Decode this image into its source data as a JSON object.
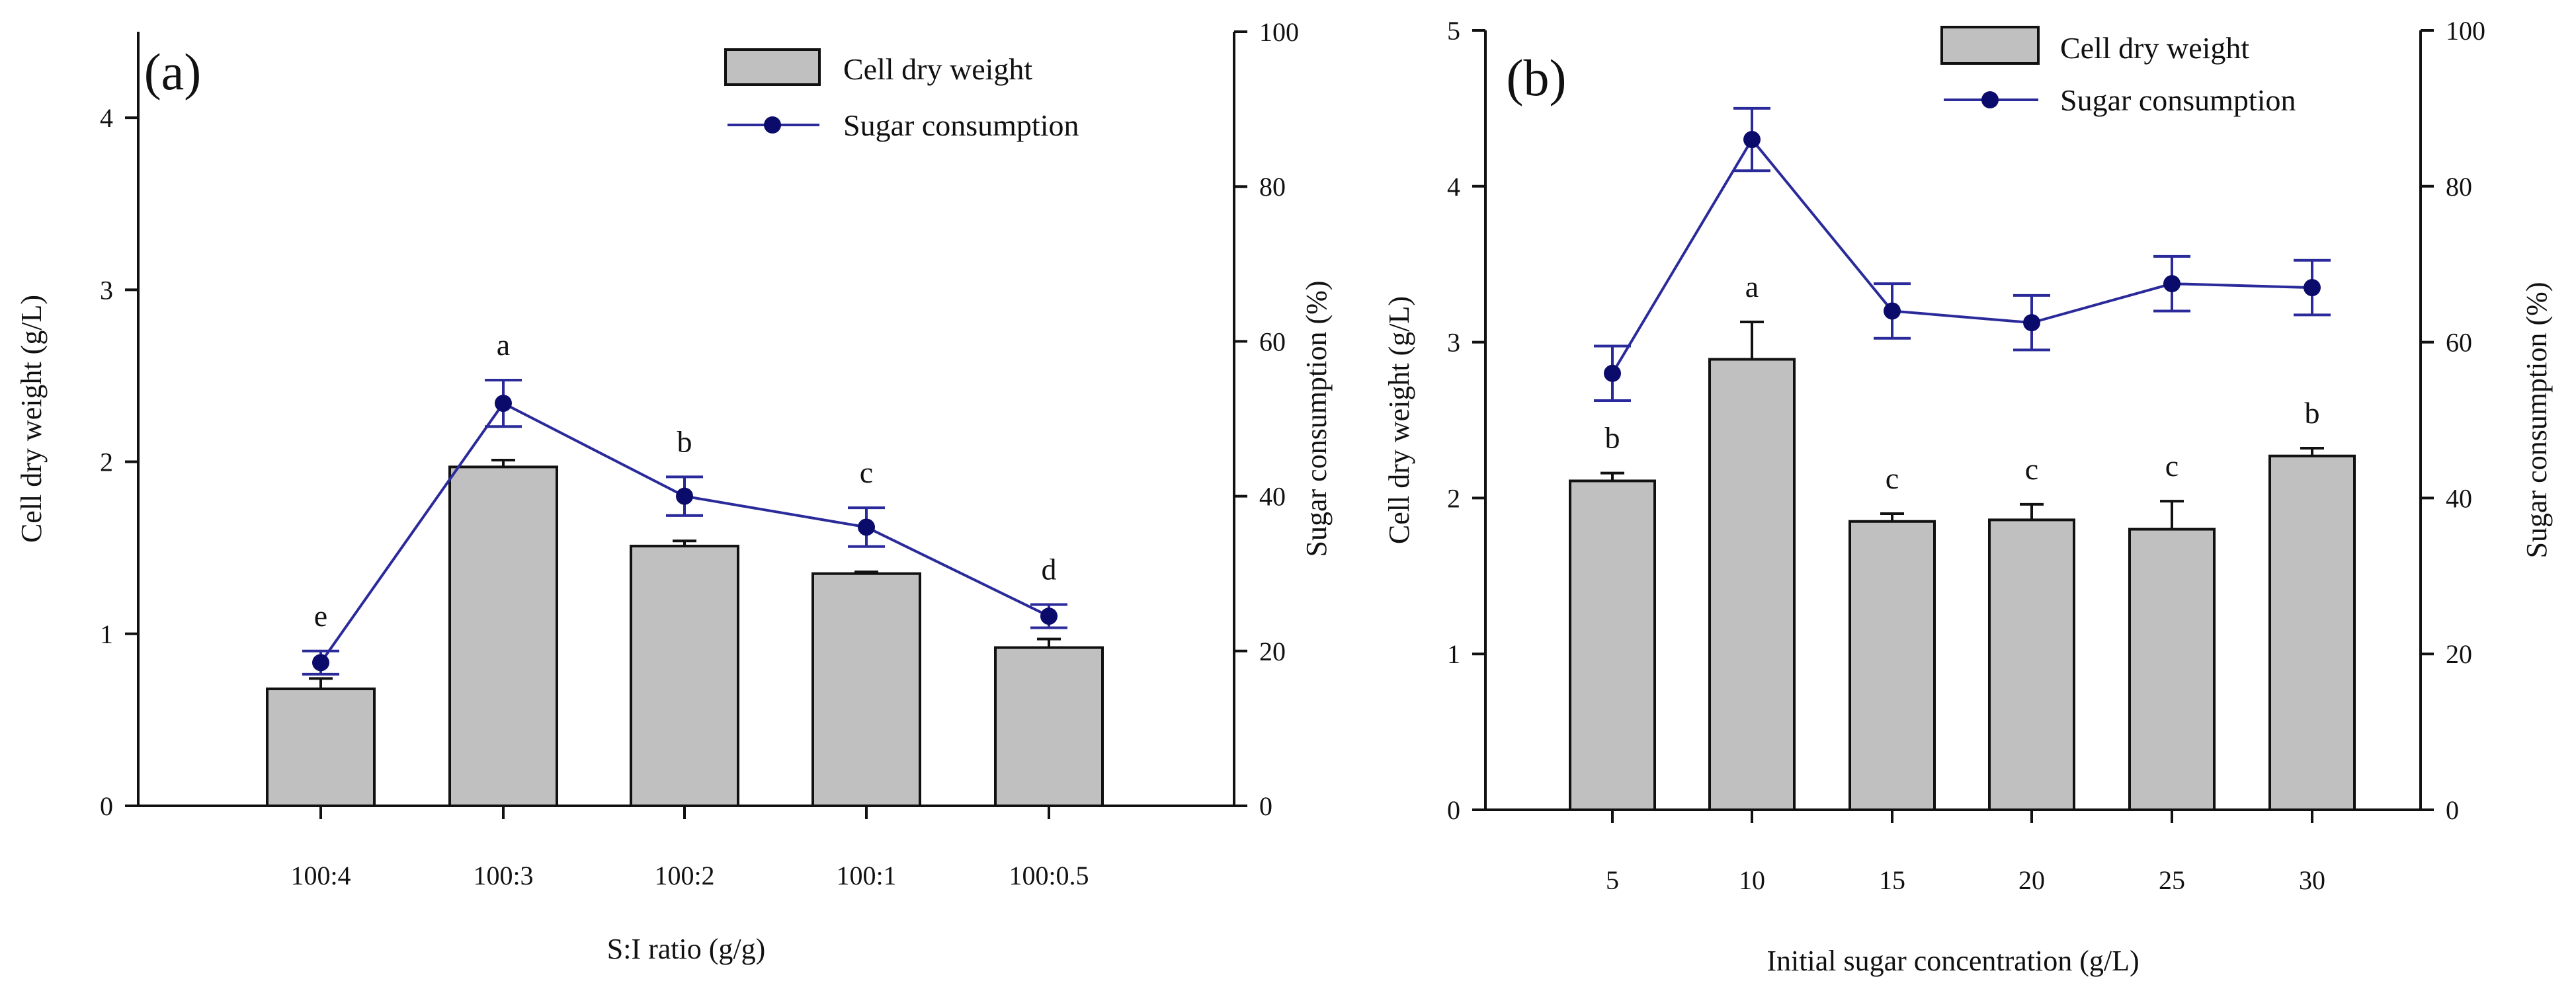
{
  "colors": {
    "bar_fill": "#c0c0c0",
    "bar_stroke": "#111111",
    "line": "#2a2a9a",
    "marker": "#0b0b6b"
  },
  "chart_data": [
    {
      "type": "bar+line",
      "panel_label": "(a)",
      "xlabel": "S:I ratio (g/g)",
      "ylabel": "Cell dry weight (g/L)",
      "y2label": "Sugar consumption (%)",
      "categories": [
        "100:4",
        "100:3",
        "100:2",
        "100:1",
        "100:0.5"
      ],
      "ylim": [
        0,
        4.5
      ],
      "yticks": [
        "0",
        "1",
        "2",
        "3",
        "4"
      ],
      "y2lim": [
        0,
        100
      ],
      "y2ticks": [
        "0",
        "20",
        "40",
        "60",
        "80",
        "100"
      ],
      "legend": [
        "Cell dry weight",
        "Sugar consumption"
      ],
      "legend_position": "top-right",
      "series": [
        {
          "name": "Cell dry weight",
          "kind": "bar",
          "values": [
            0.68,
            1.97,
            1.51,
            1.35,
            0.92
          ],
          "errors": [
            0.06,
            0.04,
            0.03,
            0.01,
            0.05
          ]
        },
        {
          "name": "Sugar consumption",
          "kind": "line",
          "axis": "right",
          "values": [
            18.5,
            52,
            40,
            36,
            24.5
          ],
          "errors": [
            1.5,
            3,
            2.5,
            2.5,
            1.5
          ]
        }
      ],
      "letters": [
        "e",
        "a",
        "b",
        "c",
        "d"
      ]
    },
    {
      "type": "bar+line",
      "panel_label": "(b)",
      "xlabel": "Initial sugar concentration (g/L)",
      "ylabel": "Cell dry weight (g/L)",
      "y2label": "Sugar consumption (%)",
      "categories": [
        "5",
        "10",
        "15",
        "20",
        "25",
        "30"
      ],
      "ylim": [
        0,
        5
      ],
      "yticks": [
        "0",
        "1",
        "2",
        "3",
        "4",
        "5"
      ],
      "y2lim": [
        0,
        100
      ],
      "y2ticks": [
        "0",
        "20",
        "40",
        "60",
        "80",
        "100"
      ],
      "legend": [
        "Cell dry weight",
        "Sugar consumption"
      ],
      "legend_position": "top-right",
      "series": [
        {
          "name": "Cell dry weight",
          "kind": "bar",
          "values": [
            2.11,
            2.89,
            1.85,
            1.86,
            1.8,
            2.27
          ],
          "errors": [
            0.05,
            0.24,
            0.05,
            0.1,
            0.18,
            0.05
          ]
        },
        {
          "name": "Sugar consumption",
          "kind": "line",
          "axis": "right",
          "values": [
            56,
            86,
            64,
            62.5,
            67.5,
            67
          ],
          "errors": [
            3.5,
            4,
            3.5,
            3.5,
            3.5,
            3.5
          ]
        }
      ],
      "letters": [
        "b",
        "a",
        "c",
        "c",
        "c",
        "b"
      ]
    }
  ]
}
